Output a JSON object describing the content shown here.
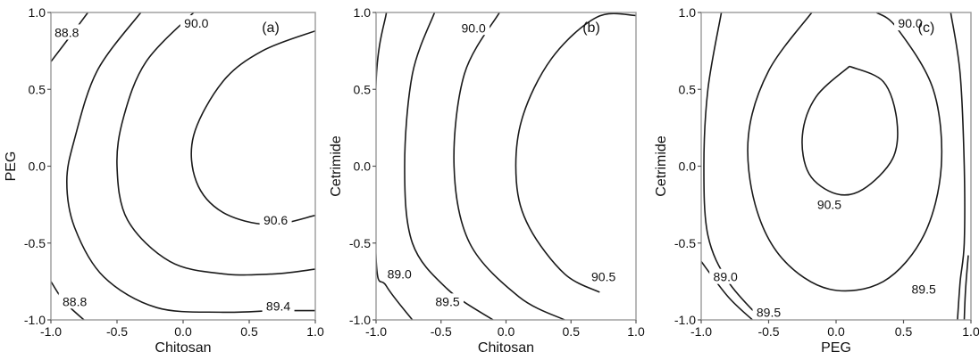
{
  "chart_data": [
    {
      "type": "contour",
      "panel": "(a)",
      "xlabel": "Chitosan",
      "ylabel": "PEG",
      "xlim": [
        -1.0,
        1.0
      ],
      "ylim": [
        -1.0,
        1.0
      ],
      "xticks": [
        "-1.0",
        "-0.5",
        "0.0",
        "0.5",
        "1.0"
      ],
      "yticks": [
        "-1.0",
        "-0.5",
        "0.0",
        "0.5",
        "1.0"
      ],
      "contours": [
        {
          "level": "88.8",
          "points": [
            [
              -1.0,
              0.68
            ],
            [
              -0.85,
              0.85
            ],
            [
              -0.72,
              1.0
            ]
          ]
        },
        {
          "level": "88.8",
          "points": [
            [
              -0.75,
              -1.0
            ],
            [
              -0.9,
              -0.88
            ],
            [
              -1.0,
              -0.75
            ]
          ]
        },
        {
          "level": "89.4",
          "points": [
            [
              -0.32,
              1.0
            ],
            [
              -0.65,
              0.62
            ],
            [
              -0.82,
              0.18
            ],
            [
              -0.88,
              -0.1
            ],
            [
              -0.82,
              -0.4
            ],
            [
              -0.6,
              -0.72
            ],
            [
              -0.2,
              -0.92
            ],
            [
              0.3,
              -0.95
            ],
            [
              0.7,
              -0.94
            ],
            [
              1.0,
              -0.94
            ]
          ]
        },
        {
          "level": "90.0",
          "points": [
            [
              0.08,
              1.0
            ],
            [
              -0.28,
              0.68
            ],
            [
              -0.45,
              0.32
            ],
            [
              -0.5,
              0.0
            ],
            [
              -0.42,
              -0.35
            ],
            [
              -0.1,
              -0.62
            ],
            [
              0.3,
              -0.7
            ],
            [
              0.7,
              -0.7
            ],
            [
              1.0,
              -0.67
            ]
          ]
        },
        {
          "level": "90.6",
          "points": [
            [
              1.0,
              0.88
            ],
            [
              0.6,
              0.75
            ],
            [
              0.3,
              0.55
            ],
            [
              0.08,
              0.2
            ],
            [
              0.1,
              -0.1
            ],
            [
              0.3,
              -0.3
            ],
            [
              0.65,
              -0.38
            ],
            [
              1.0,
              -0.32
            ]
          ]
        }
      ],
      "labels": [
        {
          "text": "88.8",
          "x": -0.88,
          "y": 0.87
        },
        {
          "text": "90.0",
          "x": 0.1,
          "y": 0.93
        },
        {
          "text": "90.6",
          "x": 0.7,
          "y": -0.35
        },
        {
          "text": "88.8",
          "x": -0.82,
          "y": -0.88
        },
        {
          "text": "89.4",
          "x": 0.72,
          "y": -0.91
        }
      ]
    },
    {
      "type": "contour",
      "panel": "(b)",
      "xlabel": "Chitosan",
      "ylabel": "Cetrimide",
      "xlim": [
        -1.0,
        1.0
      ],
      "ylim": [
        -1.0,
        1.0
      ],
      "xticks": [
        "-1.0",
        "-0.5",
        "0.0",
        "0.5",
        "1.0"
      ],
      "yticks": [
        "-1.0",
        "-0.5",
        "0.0",
        "0.5",
        "1.0"
      ],
      "contours": [
        {
          "level": "89.0",
          "points": [
            [
              -0.92,
              1.0
            ],
            [
              -1.0,
              0.55
            ],
            [
              -1.0,
              -0.6
            ],
            [
              -0.92,
              -0.78
            ],
            [
              -0.72,
              -1.0
            ]
          ]
        },
        {
          "level": "89.5",
          "points": [
            [
              -0.55,
              1.0
            ],
            [
              -0.72,
              0.6
            ],
            [
              -0.78,
              0.0
            ],
            [
              -0.72,
              -0.5
            ],
            [
              -0.45,
              -0.8
            ],
            [
              -0.1,
              -1.0
            ]
          ]
        },
        {
          "level": "90.0",
          "points": [
            [
              -0.05,
              1.0
            ],
            [
              -0.32,
              0.6
            ],
            [
              -0.4,
              0.0
            ],
            [
              -0.28,
              -0.5
            ],
            [
              0.1,
              -0.85
            ],
            [
              0.45,
              -1.0
            ]
          ]
        },
        {
          "level": "90.5",
          "points": [
            [
              1.0,
              0.98
            ],
            [
              0.7,
              0.97
            ],
            [
              0.35,
              0.7
            ],
            [
              0.12,
              0.3
            ],
            [
              0.08,
              -0.1
            ],
            [
              0.18,
              -0.4
            ],
            [
              0.45,
              -0.7
            ],
            [
              0.72,
              -0.82
            ]
          ]
        }
      ],
      "labels": [
        {
          "text": "90.0",
          "x": -0.25,
          "y": 0.9
        },
        {
          "text": "89.0",
          "x": -0.82,
          "y": -0.7
        },
        {
          "text": "89.5",
          "x": -0.45,
          "y": -0.88
        },
        {
          "text": "90.5",
          "x": 0.75,
          "y": -0.72
        }
      ]
    },
    {
      "type": "contour",
      "panel": "(c)",
      "xlabel": "PEG",
      "ylabel": "Cetrimide",
      "xlim": [
        -1.0,
        1.0
      ],
      "ylim": [
        -1.0,
        1.0
      ],
      "xticks": [
        "-1.0",
        "-0.5",
        "0.0",
        "0.5",
        "1.0"
      ],
      "yticks": [
        "-1.0",
        "-0.5",
        "0.0",
        "0.5",
        "1.0"
      ],
      "contours": [
        {
          "level": "89.0",
          "points": [
            [
              -0.85,
              1.0
            ],
            [
              -0.95,
              0.5
            ],
            [
              -0.98,
              0.0
            ],
            [
              -0.95,
              -0.45
            ],
            [
              -0.8,
              -0.75
            ],
            [
              -0.55,
              -1.0
            ]
          ]
        },
        {
          "level": "89.0",
          "points": [
            [
              0.85,
              1.0
            ],
            [
              0.92,
              0.6
            ],
            [
              0.95,
              0.0
            ],
            [
              0.95,
              -0.5
            ],
            [
              0.92,
              -0.75
            ],
            [
              0.9,
              -1.0
            ]
          ]
        },
        {
          "level": "89.5",
          "points": [
            [
              -1.0,
              -0.62
            ],
            [
              -0.8,
              -0.85
            ],
            [
              -0.62,
              -1.0
            ]
          ]
        },
        {
          "level": "89.5",
          "points": [
            [
              0.98,
              -0.58
            ],
            [
              0.96,
              -0.8
            ],
            [
              0.95,
              -1.0
            ]
          ]
        },
        {
          "level": "90.0",
          "points": [
            [
              -0.18,
              1.0
            ],
            [
              -0.5,
              0.62
            ],
            [
              -0.65,
              0.2
            ],
            [
              -0.6,
              -0.25
            ],
            [
              -0.4,
              -0.6
            ],
            [
              -0.05,
              -0.8
            ],
            [
              0.35,
              -0.75
            ],
            [
              0.65,
              -0.45
            ],
            [
              0.78,
              0.0
            ],
            [
              0.72,
              0.5
            ],
            [
              0.45,
              0.9
            ],
            [
              0.3,
              1.0
            ]
          ]
        },
        {
          "level": "90.5",
          "points": [
            [
              0.1,
              0.65
            ],
            [
              -0.15,
              0.45
            ],
            [
              -0.25,
              0.2
            ],
            [
              -0.2,
              -0.05
            ],
            [
              0.0,
              -0.18
            ],
            [
              0.2,
              -0.15
            ],
            [
              0.42,
              0.05
            ],
            [
              0.45,
              0.3
            ],
            [
              0.35,
              0.55
            ],
            [
              0.1,
              0.65
            ]
          ]
        }
      ],
      "labels": [
        {
          "text": "90.0",
          "x": 0.55,
          "y": 0.93
        },
        {
          "text": "90.5",
          "x": -0.05,
          "y": -0.25
        },
        {
          "text": "89.0",
          "x": -0.82,
          "y": -0.72
        },
        {
          "text": "89.5",
          "x": -0.5,
          "y": -0.95
        },
        {
          "text": "89.5",
          "x": 0.65,
          "y": -0.8
        }
      ]
    }
  ]
}
